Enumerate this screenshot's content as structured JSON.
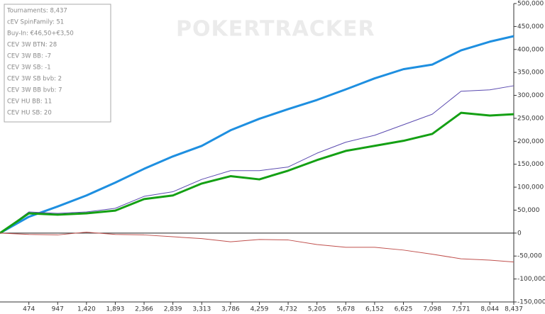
{
  "watermark": "POKERTRACKER",
  "stats": [
    "Tournaments: 8,437",
    "cEV SpinFamily: 51",
    "Buy-In: €46,50+€3,50",
    "CEV 3W BTN: 28",
    "CEV 3W BB: -7",
    "CEV 3W SB: -1",
    "CEV 3W SB bvb: 2",
    "CEV 3W BB bvb: 7",
    "CEV HU BB: 11",
    "CEV HU SB: 20"
  ],
  "chart_data": {
    "type": "line",
    "x": [
      0,
      474,
      947,
      1420,
      1893,
      2366,
      2839,
      3313,
      3786,
      4259,
      4732,
      5205,
      5678,
      6152,
      6625,
      7098,
      7571,
      8044,
      8437
    ],
    "series": [
      {
        "color": "#1e8fe0",
        "width": 3,
        "values": [
          0,
          35500,
          58000,
          82000,
          110000,
          140000,
          167000,
          190000,
          224000,
          249000,
          270000,
          290000,
          313000,
          337000,
          357000,
          367000,
          398000,
          417000,
          429000
        ]
      },
      {
        "color": "#5b4bb0",
        "width": 1,
        "values": [
          0,
          46000,
          43000,
          46000,
          54000,
          80000,
          90000,
          117000,
          136000,
          136000,
          144000,
          174000,
          198000,
          213000,
          236000,
          259000,
          309000,
          312000,
          321000
        ]
      },
      {
        "color": "#14a014",
        "width": 3,
        "values": [
          0,
          43000,
          40000,
          43000,
          49000,
          74000,
          82000,
          108000,
          124000,
          117000,
          136000,
          159000,
          179000,
          190000,
          201000,
          216000,
          262000,
          256000,
          259000
        ]
      },
      {
        "color": "#c0504d",
        "width": 1,
        "values": [
          0,
          -3000,
          -4000,
          2000,
          -3000,
          -4000,
          -8000,
          -12000,
          -19000,
          -14000,
          -15000,
          -25000,
          -31000,
          -31000,
          -37000,
          -46000,
          -56000,
          -59000,
          -63000
        ]
      }
    ],
    "xlim": [
      0,
      8437
    ],
    "xticks": [
      474,
      947,
      {
        "value": 1420,
        "label": "1,420"
      },
      {
        "value": 1893,
        "label": "1,893"
      },
      {
        "value": 2366,
        "label": "2,366"
      },
      {
        "value": 2839,
        "label": "2,839"
      },
      {
        "value": 3313,
        "label": "3,313"
      },
      {
        "value": 3786,
        "label": "3,786"
      },
      {
        "value": 4259,
        "label": "4,259"
      },
      {
        "value": 4732,
        "label": "4,732"
      },
      {
        "value": 5205,
        "label": "5,205"
      },
      {
        "value": 5678,
        "label": "5,678"
      },
      {
        "value": 6152,
        "label": "6,152"
      },
      {
        "value": 6625,
        "label": "6,625"
      },
      {
        "value": 7098,
        "label": "7,098"
      },
      {
        "value": 7571,
        "label": "7,571"
      },
      {
        "value": 8044,
        "label": "8,044"
      },
      {
        "value": 8437,
        "label": "8,437"
      }
    ],
    "ylim": [
      -150000,
      500000
    ],
    "yticks": [
      {
        "value": 500000,
        "label": "500,000"
      },
      {
        "value": 450000,
        "label": "450,000"
      },
      {
        "value": 400000,
        "label": "400,000"
      },
      {
        "value": 350000,
        "label": "350,000"
      },
      {
        "value": 300000,
        "label": "300,000"
      },
      {
        "value": 250000,
        "label": "250,000"
      },
      {
        "value": 200000,
        "label": "200,000"
      },
      {
        "value": 150000,
        "label": "150,000"
      },
      {
        "value": 100000,
        "label": "100,000"
      },
      {
        "value": 50000,
        "label": "50,000"
      },
      0,
      {
        "value": -50000,
        "label": "-50,000"
      },
      {
        "value": -100000,
        "label": "-100,000"
      },
      {
        "value": -150000,
        "label": "-150,000"
      }
    ]
  }
}
